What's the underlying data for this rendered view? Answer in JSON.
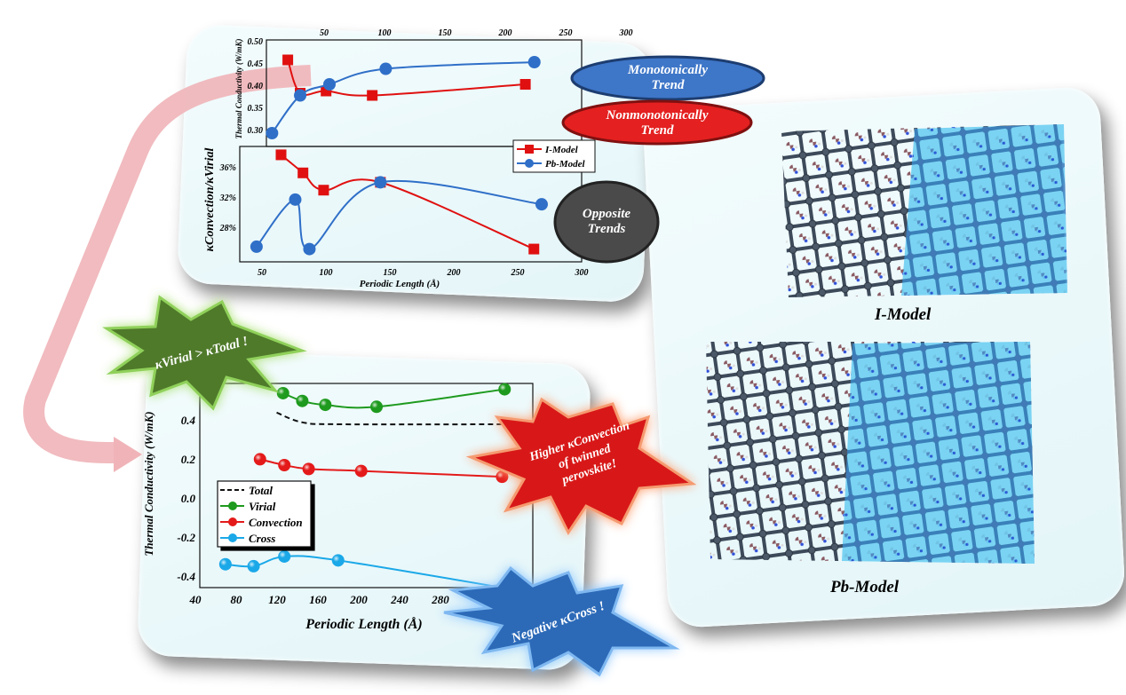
{
  "colors": {
    "i_model": "#e01010",
    "pb_model": "#2f6fc8",
    "virial": "#1e9a1e",
    "convection": "#e41a1a",
    "cross": "#1aa8e8",
    "total": "#111111",
    "arrow": "#f2b8bc",
    "panel": "#e8f7fa"
  },
  "top_figure": {
    "legend": [
      "I-Model",
      "Pb-Model"
    ],
    "x_label": "Periodic Length (Å)",
    "upper_y_label": "Thermal Conductivity (W/mK)",
    "lower_y_label": "κConvection/κVirial",
    "upper_x_ticks": [
      "50",
      "100",
      "150",
      "200",
      "250",
      "300"
    ],
    "upper_y_ticks": [
      "0.30",
      "0.35",
      "0.40",
      "0.45",
      "0.50"
    ],
    "lower_x_ticks": [
      "50",
      "100",
      "150",
      "200",
      "250",
      "300"
    ],
    "lower_y_ticks": [
      "28%",
      "32%",
      "36%"
    ]
  },
  "callouts": {
    "monotonic": [
      "Monotonically",
      "Trend"
    ],
    "nonmonotonic": [
      "Nonmonotonically",
      "Trend"
    ],
    "opposite": [
      "Opposite",
      "Trends"
    ],
    "virial_gt_total": "κVirial > κTotal !",
    "higher_convection": [
      "Higher κConvection",
      "of twinned",
      "perovskite!"
    ],
    "negative_cross": "Negative κCross !"
  },
  "bottom_figure": {
    "x_label": "Periodic Length (Å)",
    "y_label": "Thermal Conductivity (W/mK)",
    "x_ticks": [
      "40",
      "80",
      "120",
      "160",
      "200",
      "240",
      "280"
    ],
    "y_ticks": [
      "-0.4",
      "-0.2",
      "0.0",
      "0.2",
      "0.4"
    ],
    "legend": [
      "Total",
      "Virial",
      "Convection",
      "Cross"
    ]
  },
  "structures": {
    "top_label": "I-Model",
    "bottom_label": "Pb-Model"
  },
  "chart_data": [
    {
      "type": "line",
      "ylabel": "Thermal Conductivity (W/mK)",
      "xlabel": "",
      "xlim": [
        20,
        300
      ],
      "ylim": [
        0.28,
        0.5
      ],
      "series": [
        {
          "name": "I-Model",
          "marker": "square",
          "x": [
            39,
            50,
            73,
            114,
            250
          ],
          "y": [
            0.465,
            0.39,
            0.395,
            0.385,
            0.41
          ]
        },
        {
          "name": "Pb-Model",
          "marker": "circle",
          "x": [
            25,
            50,
            76,
            126,
            258
          ],
          "y": [
            0.3,
            0.385,
            0.41,
            0.445,
            0.46
          ]
        }
      ]
    },
    {
      "type": "line",
      "ylabel": "κConvection/κVirial",
      "xlabel": "Periodic Length (Å)",
      "xlim": [
        35,
        300
      ],
      "ylim": [
        26,
        39
      ],
      "series": [
        {
          "name": "I-Model",
          "marker": "square",
          "x": [
            67,
            84,
            100,
            144,
            263
          ],
          "y": [
            38.5,
            36.2,
            34,
            35,
            26.5
          ]
        },
        {
          "name": "Pb-Model",
          "marker": "circle",
          "x": [
            48,
            78,
            89,
            144,
            269
          ],
          "y": [
            26.8,
            32.8,
            26.5,
            35,
            32.2
          ]
        }
      ]
    },
    {
      "type": "line",
      "ylabel": "Thermal Conductivity (W/mK)",
      "xlabel": "Periodic Length (Å)",
      "xlim": [
        30,
        290
      ],
      "ylim": [
        -0.45,
        0.6
      ],
      "series": [
        {
          "name": "Total",
          "marker": "none",
          "x": [
            90,
            110,
            140,
            270
          ],
          "y": [
            0.45,
            0.4,
            0.39,
            0.39
          ]
        },
        {
          "name": "Virial",
          "marker": "ball",
          "x": [
            95,
            110,
            128,
            168,
            268
          ],
          "y": [
            0.55,
            0.51,
            0.49,
            0.48,
            0.57
          ]
        },
        {
          "name": "Convection",
          "marker": "ball",
          "x": [
            77,
            96,
            115,
            156,
            266
          ],
          "y": [
            0.21,
            0.18,
            0.16,
            0.15,
            0.12
          ]
        },
        {
          "name": "Cross",
          "marker": "ball",
          "x": [
            50,
            72,
            96,
            138,
            266
          ],
          "y": [
            -0.33,
            -0.34,
            -0.29,
            -0.31,
            -0.45
          ]
        }
      ]
    }
  ]
}
